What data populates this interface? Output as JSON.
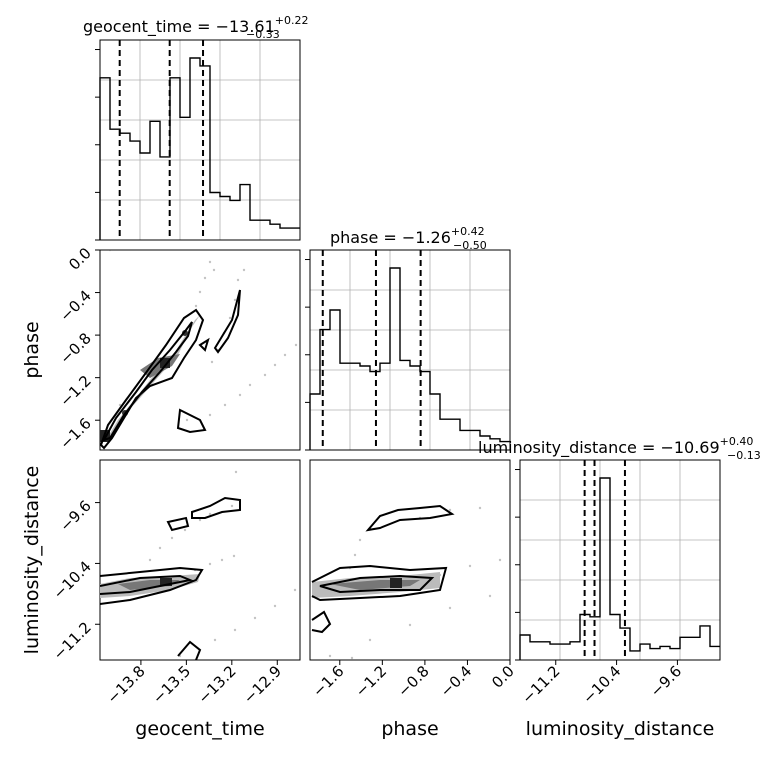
{
  "chart_data": {
    "type": "corner",
    "parameters": [
      "geocent_time",
      "phase",
      "luminosity_distance"
    ],
    "titles": [
      {
        "name": "geocent_time",
        "prefix": "geocent_time = ",
        "median": "−13.61",
        "plus": "+0.22",
        "minus": "−0.33"
      },
      {
        "name": "phase",
        "prefix": "phase = ",
        "median": "−1.26",
        "plus": "+0.42",
        "minus": "−0.50"
      },
      {
        "name": "luminosity_distance",
        "prefix": "luminosity_distance = ",
        "median": "−10.69",
        "plus": "+0.40",
        "minus": "−0.13"
      }
    ],
    "ranges": {
      "geocent_time": [
        -14.07,
        -12.75
      ],
      "phase": [
        -1.88,
        0.0
      ],
      "luminosity_distance": [
        -11.67,
        -9.04
      ]
    },
    "tick_labels": {
      "geocent_time": [
        {
          "v": -13.8,
          "t": "−13.8"
        },
        {
          "v": -13.5,
          "t": "−13.5"
        },
        {
          "v": -13.2,
          "t": "−13.2"
        },
        {
          "v": -12.9,
          "t": "−12.9"
        }
      ],
      "phase": [
        {
          "v": -1.6,
          "t": "−1.6"
        },
        {
          "v": -1.2,
          "t": "−1.2"
        },
        {
          "v": -0.8,
          "t": "−0.8"
        },
        {
          "v": -0.4,
          "t": "−0.4"
        },
        {
          "v": 0.0,
          "t": "0.0"
        }
      ],
      "luminosity_distance": [
        {
          "v": -11.2,
          "t": "−11.2"
        },
        {
          "v": -10.4,
          "t": "−10.4"
        },
        {
          "v": -9.6,
          "t": "−9.6"
        }
      ]
    },
    "axis_labels": {
      "x": [
        "geocent_time",
        "phase",
        "luminosity_distance"
      ],
      "y": [
        "",
        "phase",
        "luminosity_distance"
      ]
    },
    "quantiles": {
      "geocent_time": [
        -13.94,
        -13.61,
        -13.39
      ],
      "phase": [
        -1.76,
        -1.26,
        -0.84
      ],
      "luminosity_distance": [
        -10.82,
        -10.69,
        -10.29
      ]
    },
    "histograms": {
      "geocent_time": {
        "edges_range": [
          -14.07,
          -12.75
        ],
        "counts": [
          41,
          28,
          27,
          25,
          22,
          30,
          21,
          41,
          31,
          46,
          44,
          12,
          11,
          10,
          14,
          5,
          5,
          4,
          3,
          3
        ]
      },
      "phase": {
        "edges_range": [
          -1.88,
          0.0
        ],
        "counts": [
          20,
          43,
          50,
          31,
          31,
          30,
          28,
          31,
          65,
          32,
          30,
          28,
          20,
          11,
          11,
          7,
          7,
          5,
          4,
          3
        ]
      },
      "luminosity_distance": {
        "edges_range": [
          -11.67,
          -9.04
        ],
        "counts": [
          11,
          8,
          8,
          7,
          7,
          8,
          20,
          19,
          80,
          20,
          14,
          4,
          7,
          5,
          6,
          5,
          10,
          10,
          15,
          6
        ]
      }
    },
    "grid": true
  }
}
